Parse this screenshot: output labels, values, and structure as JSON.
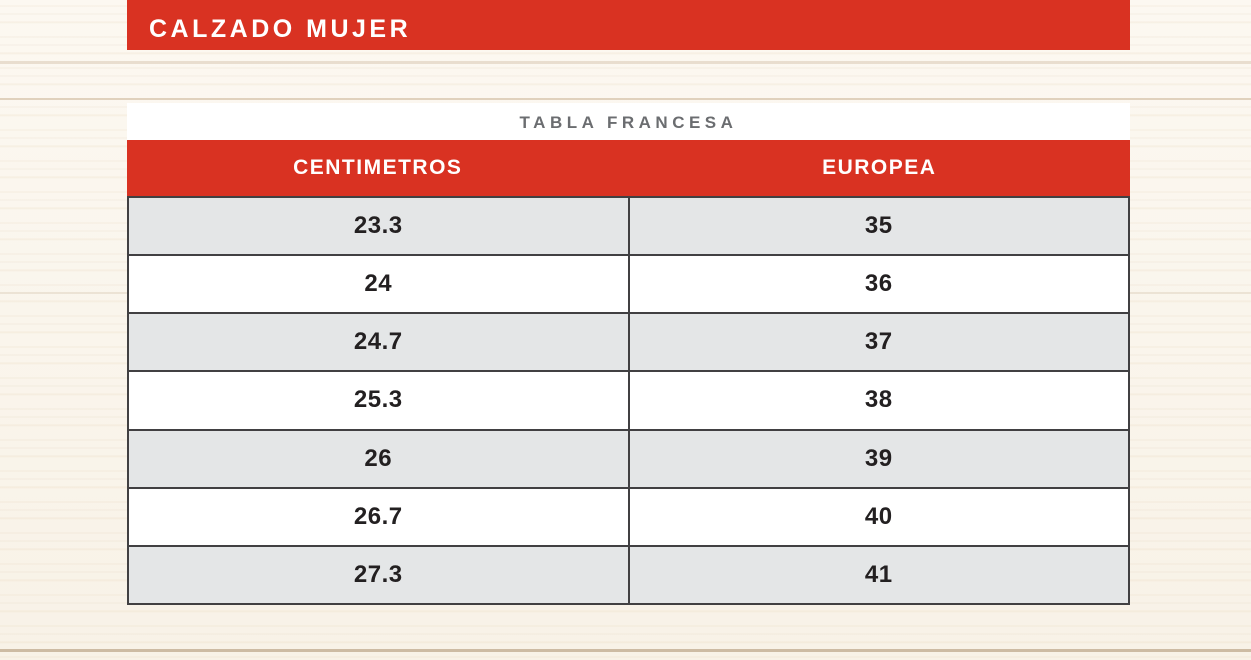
{
  "colors": {
    "accent_red": "#D93222",
    "caption_gray": "#6B6D70",
    "row_alt_gray": "#E4E6E7",
    "cell_text": "#232021",
    "border_dark": "#414042"
  },
  "banner": {
    "title": "CALZADO MUJER"
  },
  "size_table": {
    "caption": "TABLA FRANCESA",
    "headers": [
      "CENTIMETROS",
      "EUROPEA"
    ],
    "rows": [
      [
        "23.3",
        "35"
      ],
      [
        "24",
        "36"
      ],
      [
        "24.7",
        "37"
      ],
      [
        "25.3",
        "38"
      ],
      [
        "26",
        "39"
      ],
      [
        "26.7",
        "40"
      ],
      [
        "27.3",
        "41"
      ]
    ]
  },
  "chart_data": {
    "type": "table",
    "title": "TABLA FRANCESA",
    "columns": [
      "CENTIMETROS",
      "EUROPEA"
    ],
    "rows": [
      [
        "23.3",
        "35"
      ],
      [
        "24",
        "36"
      ],
      [
        "24.7",
        "37"
      ],
      [
        "25.3",
        "38"
      ],
      [
        "26",
        "39"
      ],
      [
        "26.7",
        "40"
      ],
      [
        "27.3",
        "41"
      ]
    ]
  }
}
